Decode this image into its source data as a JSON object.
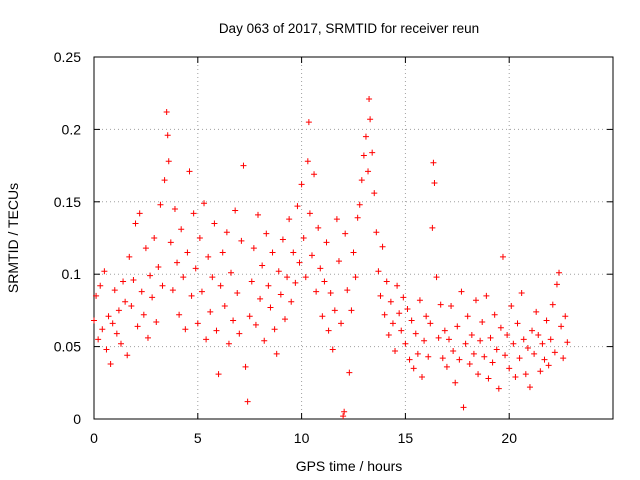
{
  "chart_data": {
    "type": "scatter",
    "title": "Day 063 of 2017, SRMTID for receiver reun",
    "xlabel": "GPS time / hours",
    "ylabel": "SRMTID / TECUs",
    "xlim": [
      0,
      25
    ],
    "ylim": [
      0,
      0.25
    ],
    "xticks": [
      0,
      5,
      10,
      15,
      20
    ],
    "xtick_labels": [
      "0",
      "5",
      "10",
      "15",
      "20"
    ],
    "yticks": [
      0,
      0.05,
      0.1,
      0.15,
      0.2,
      0.25
    ],
    "ytick_labels": [
      "0",
      "0.05",
      "0.1",
      "0.15",
      "0.2",
      "0.25"
    ],
    "grid": true,
    "marker": "+",
    "color": "#ff0000",
    "series": [
      {
        "name": "SRMTID",
        "points": [
          [
            0.0,
            0.068
          ],
          [
            0.1,
            0.085
          ],
          [
            0.2,
            0.055
          ],
          [
            0.3,
            0.092
          ],
          [
            0.4,
            0.062
          ],
          [
            0.5,
            0.102
          ],
          [
            0.6,
            0.048
          ],
          [
            0.7,
            0.071
          ],
          [
            0.8,
            0.038
          ],
          [
            0.9,
            0.066
          ],
          [
            1.0,
            0.089
          ],
          [
            1.1,
            0.059
          ],
          [
            1.2,
            0.075
          ],
          [
            1.3,
            0.052
          ],
          [
            1.4,
            0.095
          ],
          [
            1.5,
            0.081
          ],
          [
            1.6,
            0.044
          ],
          [
            1.7,
            0.112
          ],
          [
            1.8,
            0.078
          ],
          [
            1.9,
            0.096
          ],
          [
            2.0,
            0.135
          ],
          [
            2.1,
            0.064
          ],
          [
            2.2,
            0.142
          ],
          [
            2.3,
            0.088
          ],
          [
            2.4,
            0.072
          ],
          [
            2.5,
            0.118
          ],
          [
            2.6,
            0.056
          ],
          [
            2.7,
            0.099
          ],
          [
            2.8,
            0.084
          ],
          [
            2.9,
            0.125
          ],
          [
            3.0,
            0.067
          ],
          [
            3.1,
            0.105
          ],
          [
            3.2,
            0.148
          ],
          [
            3.3,
            0.092
          ],
          [
            3.4,
            0.165
          ],
          [
            3.5,
            0.212
          ],
          [
            3.55,
            0.196
          ],
          [
            3.6,
            0.178
          ],
          [
            3.7,
            0.122
          ],
          [
            3.8,
            0.089
          ],
          [
            3.9,
            0.145
          ],
          [
            4.0,
            0.108
          ],
          [
            4.1,
            0.072
          ],
          [
            4.2,
            0.131
          ],
          [
            4.3,
            0.098
          ],
          [
            4.4,
            0.062
          ],
          [
            4.5,
            0.115
          ],
          [
            4.6,
            0.171
          ],
          [
            4.7,
            0.085
          ],
          [
            4.8,
            0.142
          ],
          [
            4.9,
            0.104
          ],
          [
            5.0,
            0.066
          ],
          [
            5.1,
            0.125
          ],
          [
            5.2,
            0.088
          ],
          [
            5.3,
            0.149
          ],
          [
            5.4,
            0.055
          ],
          [
            5.5,
            0.112
          ],
          [
            5.6,
            0.074
          ],
          [
            5.7,
            0.098
          ],
          [
            5.8,
            0.135
          ],
          [
            5.9,
            0.061
          ],
          [
            6.0,
            0.031
          ],
          [
            6.1,
            0.092
          ],
          [
            6.2,
            0.115
          ],
          [
            6.3,
            0.078
          ],
          [
            6.4,
            0.129
          ],
          [
            6.5,
            0.052
          ],
          [
            6.6,
            0.101
          ],
          [
            6.7,
            0.068
          ],
          [
            6.8,
            0.144
          ],
          [
            6.9,
            0.087
          ],
          [
            7.0,
            0.059
          ],
          [
            7.1,
            0.123
          ],
          [
            7.2,
            0.175
          ],
          [
            7.3,
            0.036
          ],
          [
            7.4,
            0.012
          ],
          [
            7.5,
            0.071
          ],
          [
            7.6,
            0.095
          ],
          [
            7.7,
            0.118
          ],
          [
            7.8,
            0.065
          ],
          [
            7.9,
            0.141
          ],
          [
            8.0,
            0.083
          ],
          [
            8.1,
            0.106
          ],
          [
            8.2,
            0.054
          ],
          [
            8.3,
            0.128
          ],
          [
            8.4,
            0.092
          ],
          [
            8.5,
            0.077
          ],
          [
            8.6,
            0.115
          ],
          [
            8.7,
            0.062
          ],
          [
            8.8,
            0.045
          ],
          [
            8.9,
            0.102
          ],
          [
            9.0,
            0.086
          ],
          [
            9.1,
            0.124
          ],
          [
            9.2,
            0.069
          ],
          [
            9.3,
            0.098
          ],
          [
            9.4,
            0.138
          ],
          [
            9.5,
            0.081
          ],
          [
            9.6,
            0.115
          ],
          [
            9.7,
            0.094
          ],
          [
            9.8,
            0.147
          ],
          [
            9.9,
            0.108
          ],
          [
            10.0,
            0.162
          ],
          [
            10.1,
            0.125
          ],
          [
            10.2,
            0.098
          ],
          [
            10.3,
            0.178
          ],
          [
            10.35,
            0.205
          ],
          [
            10.4,
            0.142
          ],
          [
            10.5,
            0.113
          ],
          [
            10.6,
            0.169
          ],
          [
            10.7,
            0.088
          ],
          [
            10.8,
            0.132
          ],
          [
            10.9,
            0.104
          ],
          [
            11.0,
            0.071
          ],
          [
            11.1,
            0.095
          ],
          [
            11.2,
            0.122
          ],
          [
            11.3,
            0.061
          ],
          [
            11.4,
            0.087
          ],
          [
            11.5,
            0.048
          ],
          [
            11.6,
            0.075
          ],
          [
            11.7,
            0.138
          ],
          [
            11.8,
            0.109
          ],
          [
            11.9,
            0.066
          ],
          [
            12.0,
            0.002
          ],
          [
            12.05,
            0.005
          ],
          [
            12.1,
            0.128
          ],
          [
            12.2,
            0.089
          ],
          [
            12.3,
            0.032
          ],
          [
            12.4,
            0.075
          ],
          [
            12.5,
            0.115
          ],
          [
            12.6,
            0.098
          ],
          [
            12.7,
            0.139
          ],
          [
            12.8,
            0.148
          ],
          [
            12.9,
            0.165
          ],
          [
            13.0,
            0.182
          ],
          [
            13.1,
            0.195
          ],
          [
            13.2,
            0.171
          ],
          [
            13.25,
            0.221
          ],
          [
            13.3,
            0.207
          ],
          [
            13.4,
            0.184
          ],
          [
            13.5,
            0.156
          ],
          [
            13.6,
            0.129
          ],
          [
            13.7,
            0.102
          ],
          [
            13.8,
            0.085
          ],
          [
            13.9,
            0.119
          ],
          [
            14.0,
            0.072
          ],
          [
            14.1,
            0.095
          ],
          [
            14.2,
            0.058
          ],
          [
            14.3,
            0.081
          ],
          [
            14.4,
            0.066
          ],
          [
            14.5,
            0.047
          ],
          [
            14.6,
            0.092
          ],
          [
            14.7,
            0.073
          ],
          [
            14.8,
            0.061
          ],
          [
            14.9,
            0.084
          ],
          [
            15.0,
            0.052
          ],
          [
            15.1,
            0.076
          ],
          [
            15.2,
            0.041
          ],
          [
            15.3,
            0.068
          ],
          [
            15.4,
            0.035
          ],
          [
            15.5,
            0.059
          ],
          [
            15.6,
            0.045
          ],
          [
            15.7,
            0.082
          ],
          [
            15.8,
            0.029
          ],
          [
            15.9,
            0.054
          ],
          [
            16.0,
            0.071
          ],
          [
            16.1,
            0.043
          ],
          [
            16.2,
            0.066
          ],
          [
            16.3,
            0.132
          ],
          [
            16.35,
            0.177
          ],
          [
            16.4,
            0.163
          ],
          [
            16.5,
            0.098
          ],
          [
            16.6,
            0.056
          ],
          [
            16.7,
            0.079
          ],
          [
            16.8,
            0.042
          ],
          [
            16.9,
            0.061
          ],
          [
            17.0,
            0.036
          ],
          [
            17.1,
            0.055
          ],
          [
            17.2,
            0.078
          ],
          [
            17.3,
            0.047
          ],
          [
            17.4,
            0.025
          ],
          [
            17.5,
            0.064
          ],
          [
            17.6,
            0.041
          ],
          [
            17.7,
            0.088
          ],
          [
            17.8,
            0.008
          ],
          [
            17.9,
            0.052
          ],
          [
            18.0,
            0.071
          ],
          [
            18.1,
            0.038
          ],
          [
            18.2,
            0.058
          ],
          [
            18.3,
            0.045
          ],
          [
            18.4,
            0.082
          ],
          [
            18.5,
            0.031
          ],
          [
            18.6,
            0.054
          ],
          [
            18.7,
            0.067
          ],
          [
            18.8,
            0.043
          ],
          [
            18.9,
            0.085
          ],
          [
            19.0,
            0.028
          ],
          [
            19.1,
            0.056
          ],
          [
            19.2,
            0.039
          ],
          [
            19.3,
            0.072
          ],
          [
            19.4,
            0.048
          ],
          [
            19.5,
            0.021
          ],
          [
            19.6,
            0.063
          ],
          [
            19.7,
            0.112
          ],
          [
            19.8,
            0.044
          ],
          [
            19.9,
            0.058
          ],
          [
            20.0,
            0.035
          ],
          [
            20.1,
            0.078
          ],
          [
            20.2,
            0.052
          ],
          [
            20.3,
            0.029
          ],
          [
            20.4,
            0.066
          ],
          [
            20.5,
            0.042
          ],
          [
            20.6,
            0.087
          ],
          [
            20.7,
            0.055
          ],
          [
            20.8,
            0.031
          ],
          [
            20.9,
            0.049
          ],
          [
            21.0,
            0.022
          ],
          [
            21.1,
            0.061
          ],
          [
            21.2,
            0.045
          ],
          [
            21.3,
            0.074
          ],
          [
            21.4,
            0.058
          ],
          [
            21.5,
            0.033
          ],
          [
            21.6,
            0.052
          ],
          [
            21.7,
            0.041
          ],
          [
            21.8,
            0.068
          ],
          [
            21.9,
            0.037
          ],
          [
            22.0,
            0.055
          ],
          [
            22.1,
            0.079
          ],
          [
            22.2,
            0.046
          ],
          [
            22.3,
            0.093
          ],
          [
            22.4,
            0.101
          ],
          [
            22.5,
            0.064
          ],
          [
            22.6,
            0.042
          ],
          [
            22.7,
            0.071
          ],
          [
            22.8,
            0.053
          ]
        ]
      }
    ]
  }
}
